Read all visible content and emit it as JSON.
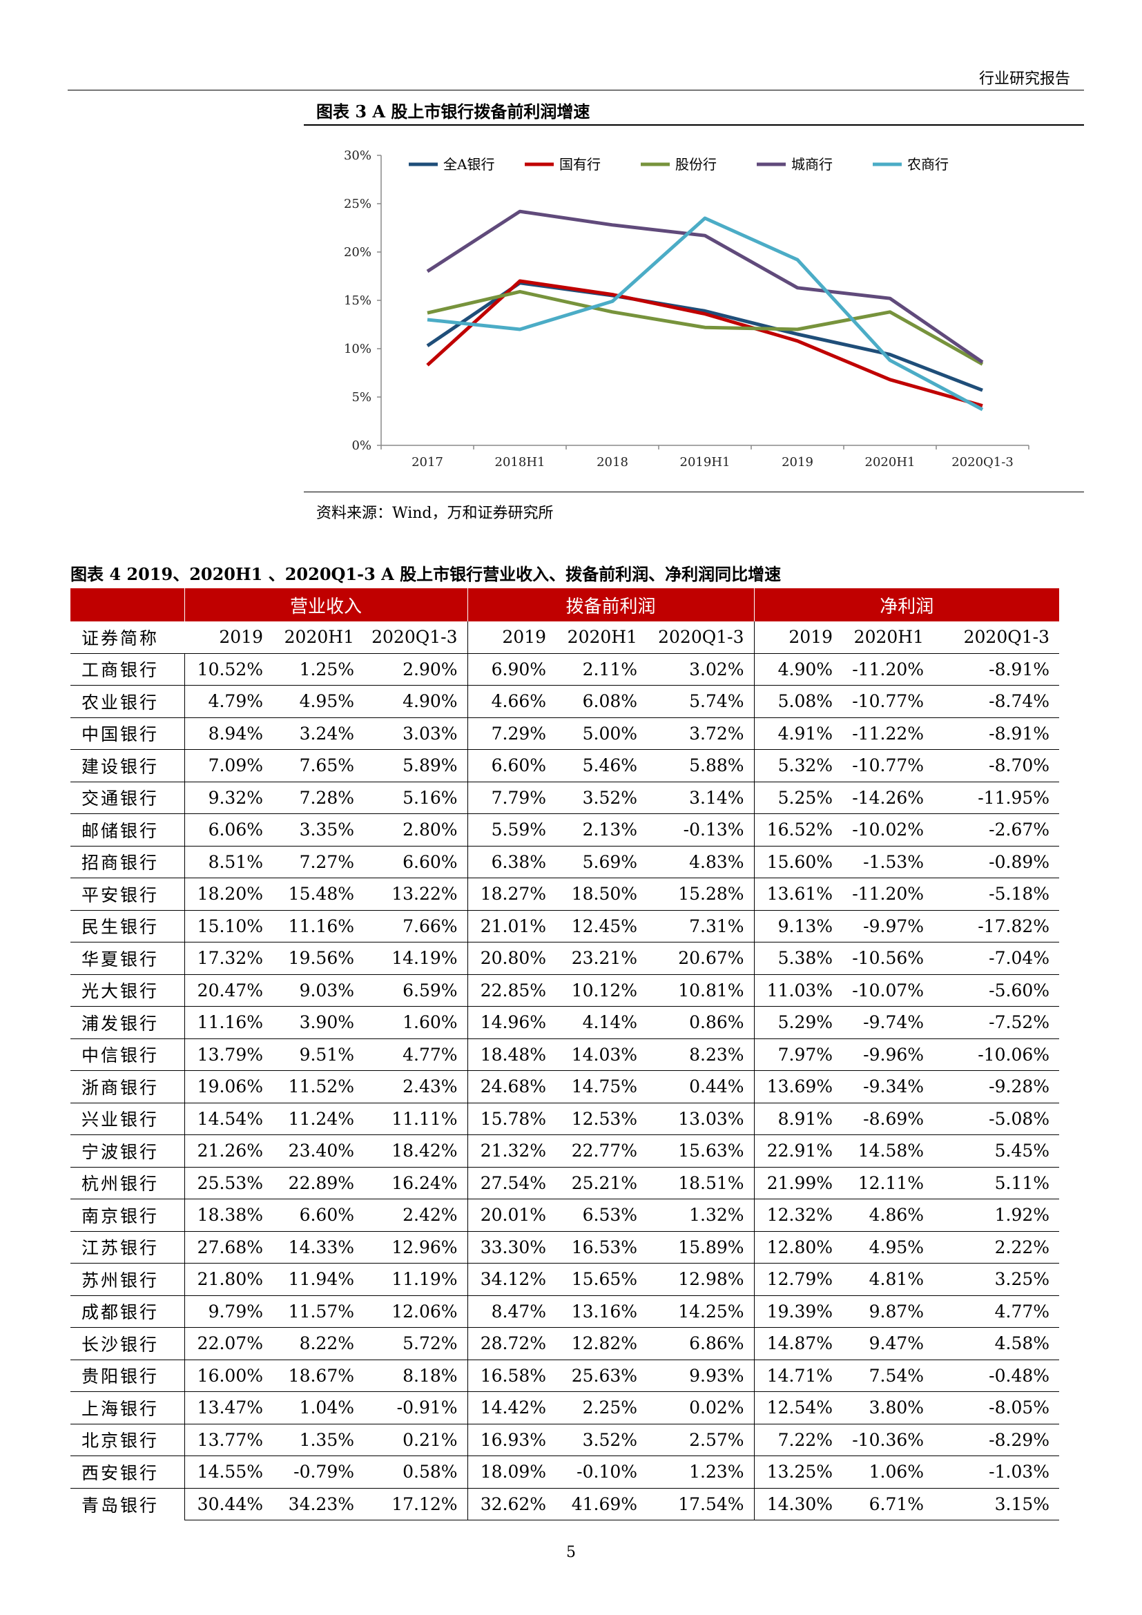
{
  "header": {
    "report_type": "行业研究报告"
  },
  "figure3": {
    "title": "图表 3   A 股上市银行拨备前利润增速",
    "source": "资料来源：Wind，万和证券研究所"
  },
  "chart_data": {
    "type": "line",
    "x": [
      "2017",
      "2018H1",
      "2018",
      "2019H1",
      "2019",
      "2020H1",
      "2020Q1-3"
    ],
    "y_ticks": [
      "0%",
      "5%",
      "10%",
      "15%",
      "20%",
      "25%",
      "30%"
    ],
    "ylim": [
      0,
      30
    ],
    "legend_position": "top",
    "grid": false,
    "series": [
      {
        "name": "全A银行",
        "color": "#1f4e79",
        "values": [
          10.3,
          16.8,
          15.5,
          13.9,
          11.5,
          9.4,
          5.7
        ]
      },
      {
        "name": "国有行",
        "color": "#c00000",
        "values": [
          8.3,
          17.0,
          15.6,
          13.6,
          10.8,
          6.8,
          4.1
        ]
      },
      {
        "name": "股份行",
        "color": "#77933c",
        "values": [
          13.7,
          15.9,
          13.8,
          12.2,
          12.0,
          13.8,
          8.4
        ]
      },
      {
        "name": "城商行",
        "color": "#604a7b",
        "values": [
          18.0,
          24.2,
          22.8,
          21.7,
          16.3,
          15.2,
          8.6
        ]
      },
      {
        "name": "农商行",
        "color": "#4bacc6",
        "values": [
          13.0,
          12.0,
          14.9,
          23.5,
          19.2,
          8.8,
          3.7
        ]
      }
    ]
  },
  "figure4": {
    "title": "图表 4   2019、2020H1 、2020Q1-3 A 股上市银行营业收入、拨备前利润、净利润同比增速",
    "groups": [
      "营业收入",
      "拨备前利润",
      "净利润"
    ],
    "name_header": "证券简称",
    "periods": [
      "2019",
      "2020H1",
      "2020Q1-3"
    ],
    "rows": [
      [
        "工商银行",
        "10.52%",
        "1.25%",
        "2.90%",
        "6.90%",
        "2.11%",
        "3.02%",
        "4.90%",
        "-11.20%",
        "-8.91%"
      ],
      [
        "农业银行",
        "4.79%",
        "4.95%",
        "4.90%",
        "4.66%",
        "6.08%",
        "5.74%",
        "5.08%",
        "-10.77%",
        "-8.74%"
      ],
      [
        "中国银行",
        "8.94%",
        "3.24%",
        "3.03%",
        "7.29%",
        "5.00%",
        "3.72%",
        "4.91%",
        "-11.22%",
        "-8.91%"
      ],
      [
        "建设银行",
        "7.09%",
        "7.65%",
        "5.89%",
        "6.60%",
        "5.46%",
        "5.88%",
        "5.32%",
        "-10.77%",
        "-8.70%"
      ],
      [
        "交通银行",
        "9.32%",
        "7.28%",
        "5.16%",
        "7.79%",
        "3.52%",
        "3.14%",
        "5.25%",
        "-14.26%",
        "-11.95%"
      ],
      [
        "邮储银行",
        "6.06%",
        "3.35%",
        "2.80%",
        "5.59%",
        "2.13%",
        "-0.13%",
        "16.52%",
        "-10.02%",
        "-2.67%"
      ],
      [
        "招商银行",
        "8.51%",
        "7.27%",
        "6.60%",
        "6.38%",
        "5.69%",
        "4.83%",
        "15.60%",
        "-1.53%",
        "-0.89%"
      ],
      [
        "平安银行",
        "18.20%",
        "15.48%",
        "13.22%",
        "18.27%",
        "18.50%",
        "15.28%",
        "13.61%",
        "-11.20%",
        "-5.18%"
      ],
      [
        "民生银行",
        "15.10%",
        "11.16%",
        "7.66%",
        "21.01%",
        "12.45%",
        "7.31%",
        "9.13%",
        "-9.97%",
        "-17.82%"
      ],
      [
        "华夏银行",
        "17.32%",
        "19.56%",
        "14.19%",
        "20.80%",
        "23.21%",
        "20.67%",
        "5.38%",
        "-10.56%",
        "-7.04%"
      ],
      [
        "光大银行",
        "20.47%",
        "9.03%",
        "6.59%",
        "22.85%",
        "10.12%",
        "10.81%",
        "11.03%",
        "-10.07%",
        "-5.60%"
      ],
      [
        "浦发银行",
        "11.16%",
        "3.90%",
        "1.60%",
        "14.96%",
        "4.14%",
        "0.86%",
        "5.29%",
        "-9.74%",
        "-7.52%"
      ],
      [
        "中信银行",
        "13.79%",
        "9.51%",
        "4.77%",
        "18.48%",
        "14.03%",
        "8.23%",
        "7.97%",
        "-9.96%",
        "-10.06%"
      ],
      [
        "浙商银行",
        "19.06%",
        "11.52%",
        "2.43%",
        "24.68%",
        "14.75%",
        "0.44%",
        "13.69%",
        "-9.34%",
        "-9.28%"
      ],
      [
        "兴业银行",
        "14.54%",
        "11.24%",
        "11.11%",
        "15.78%",
        "12.53%",
        "13.03%",
        "8.91%",
        "-8.69%",
        "-5.08%"
      ],
      [
        "宁波银行",
        "21.26%",
        "23.40%",
        "18.42%",
        "21.32%",
        "22.77%",
        "15.63%",
        "22.91%",
        "14.58%",
        "5.45%"
      ],
      [
        "杭州银行",
        "25.53%",
        "22.89%",
        "16.24%",
        "27.54%",
        "25.21%",
        "18.51%",
        "21.99%",
        "12.11%",
        "5.11%"
      ],
      [
        "南京银行",
        "18.38%",
        "6.60%",
        "2.42%",
        "20.01%",
        "6.53%",
        "1.32%",
        "12.32%",
        "4.86%",
        "1.92%"
      ],
      [
        "江苏银行",
        "27.68%",
        "14.33%",
        "12.96%",
        "33.30%",
        "16.53%",
        "15.89%",
        "12.80%",
        "4.95%",
        "2.22%"
      ],
      [
        "苏州银行",
        "21.80%",
        "11.94%",
        "11.19%",
        "34.12%",
        "15.65%",
        "12.98%",
        "12.79%",
        "4.81%",
        "3.25%"
      ],
      [
        "成都银行",
        "9.79%",
        "11.57%",
        "12.06%",
        "8.47%",
        "13.16%",
        "14.25%",
        "19.39%",
        "9.87%",
        "4.77%"
      ],
      [
        "长沙银行",
        "22.07%",
        "8.22%",
        "5.72%",
        "28.72%",
        "12.82%",
        "6.86%",
        "14.87%",
        "9.47%",
        "4.58%"
      ],
      [
        "贵阳银行",
        "16.00%",
        "18.67%",
        "8.18%",
        "16.58%",
        "25.63%",
        "9.93%",
        "14.71%",
        "7.54%",
        "-0.48%"
      ],
      [
        "上海银行",
        "13.47%",
        "1.04%",
        "-0.91%",
        "14.42%",
        "2.25%",
        "0.02%",
        "12.54%",
        "3.80%",
        "-8.05%"
      ],
      [
        "北京银行",
        "13.77%",
        "1.35%",
        "0.21%",
        "16.93%",
        "3.52%",
        "2.57%",
        "7.22%",
        "-10.36%",
        "-8.29%"
      ],
      [
        "西安银行",
        "14.55%",
        "-0.79%",
        "0.58%",
        "18.09%",
        "-0.10%",
        "1.23%",
        "13.25%",
        "1.06%",
        "-1.03%"
      ],
      [
        "青岛银行",
        "30.44%",
        "34.23%",
        "17.12%",
        "32.62%",
        "41.69%",
        "17.54%",
        "14.30%",
        "6.71%",
        "3.15%"
      ]
    ]
  },
  "page_number": "5"
}
